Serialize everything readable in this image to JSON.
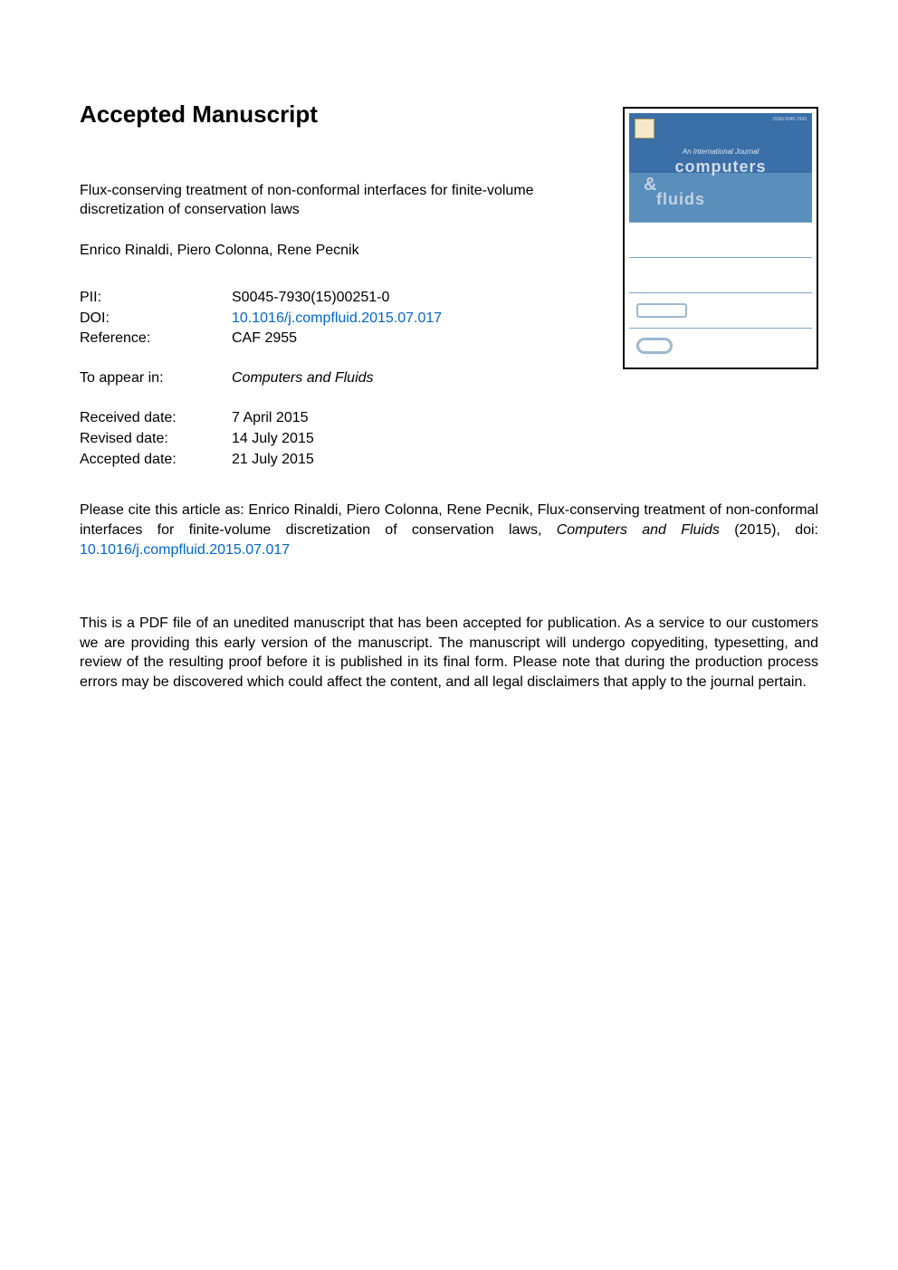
{
  "heading": "Accepted Manuscript",
  "title": "Flux-conserving treatment of non-conformal interfaces for finite-volume discretization of conservation laws",
  "authors": "Enrico Rinaldi, Piero Colonna, Rene Pecnik",
  "meta": {
    "pii_label": "PII:",
    "pii_value": "S0045-7930(15)00251-0",
    "doi_label": "DOI:",
    "doi_value": "10.1016/j.compfluid.2015.07.017",
    "ref_label": "Reference:",
    "ref_value": "CAF 2955"
  },
  "appear": {
    "label": "To appear in:",
    "value": "Computers and Fluids"
  },
  "dates": {
    "received_label": "Received date:",
    "received_value": "7 April 2015",
    "revised_label": "Revised date:",
    "revised_value": "14 July 2015",
    "accepted_label": "Accepted date:",
    "accepted_value": "21 July 2015"
  },
  "citation": {
    "prefix": "Please cite this article as: Enrico Rinaldi, Piero Colonna, Rene Pecnik, Flux-conserving treatment of non-conformal interfaces for finite-volume discretization of conservation laws, ",
    "journal": "Computers and Fluids",
    "mid": " (2015), doi: ",
    "doi": "10.1016/j.compfluid.2015.07.017"
  },
  "disclaimer": "This is a PDF file of an unedited manuscript that has been accepted for publication. As a service to our customers we are providing this early version of the manuscript. The manuscript will undergo copyediting, typesetting, and review of the resulting proof before it is published in its final form. Please note that during the production process errors may be discovered which could affect the content, and all legal disclaimers that apply to the journal pertain.",
  "cover": {
    "issn": "ISSN 0045-7930",
    "subtitle": "An International Journal",
    "title1": "computers",
    "amp": "&",
    "title2": "fluids"
  },
  "colors": {
    "link": "#0066cc",
    "text": "#000000",
    "bg": "#ffffff",
    "cover_blue_top": "#3a6fa8",
    "cover_blue_bottom": "#5a8fbc",
    "cover_line": "#7fa5c7",
    "cover_shape": "#9db8d0"
  }
}
